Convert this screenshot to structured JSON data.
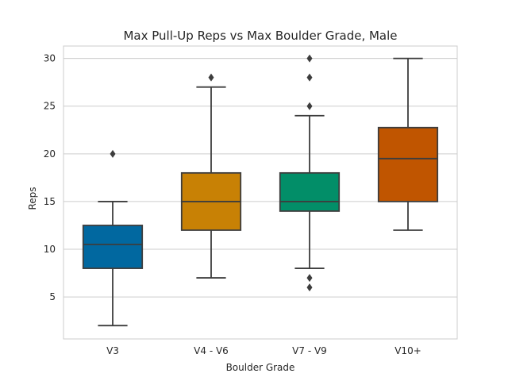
{
  "chart_data": {
    "type": "box",
    "title": "Max Pull-Up Reps vs Max Boulder Grade, Male",
    "xlabel": "Boulder Grade",
    "ylabel": "Reps",
    "ylim": [
      0.6,
      31.3
    ],
    "yticks": [
      5,
      10,
      15,
      20,
      25,
      30
    ],
    "grid": "horizontal",
    "categories": [
      "V3",
      "V4 - V6",
      "V7 - V9",
      "V10+"
    ],
    "boxes": [
      {
        "category": "V3",
        "color": "#0173b2",
        "whisker_low": 2,
        "q1": 8,
        "median": 10.5,
        "q3": 12.5,
        "whisker_high": 15,
        "outliers": [
          20
        ]
      },
      {
        "category": "V4 - V6",
        "color": "#de8f05",
        "whisker_low": 7,
        "q1": 12,
        "median": 15,
        "q3": 18,
        "whisker_high": 27,
        "outliers": [
          28
        ]
      },
      {
        "category": "V7 - V9",
        "color": "#029e73",
        "whisker_low": 8,
        "q1": 14,
        "median": 15,
        "q3": 18,
        "whisker_high": 24,
        "outliers": [
          30,
          28,
          25,
          7,
          6
        ]
      },
      {
        "category": "V10+",
        "color": "#d55e00",
        "whisker_low": 12,
        "q1": 15,
        "median": 19.5,
        "q3": 22.75,
        "whisker_high": 30,
        "outliers": []
      }
    ]
  }
}
